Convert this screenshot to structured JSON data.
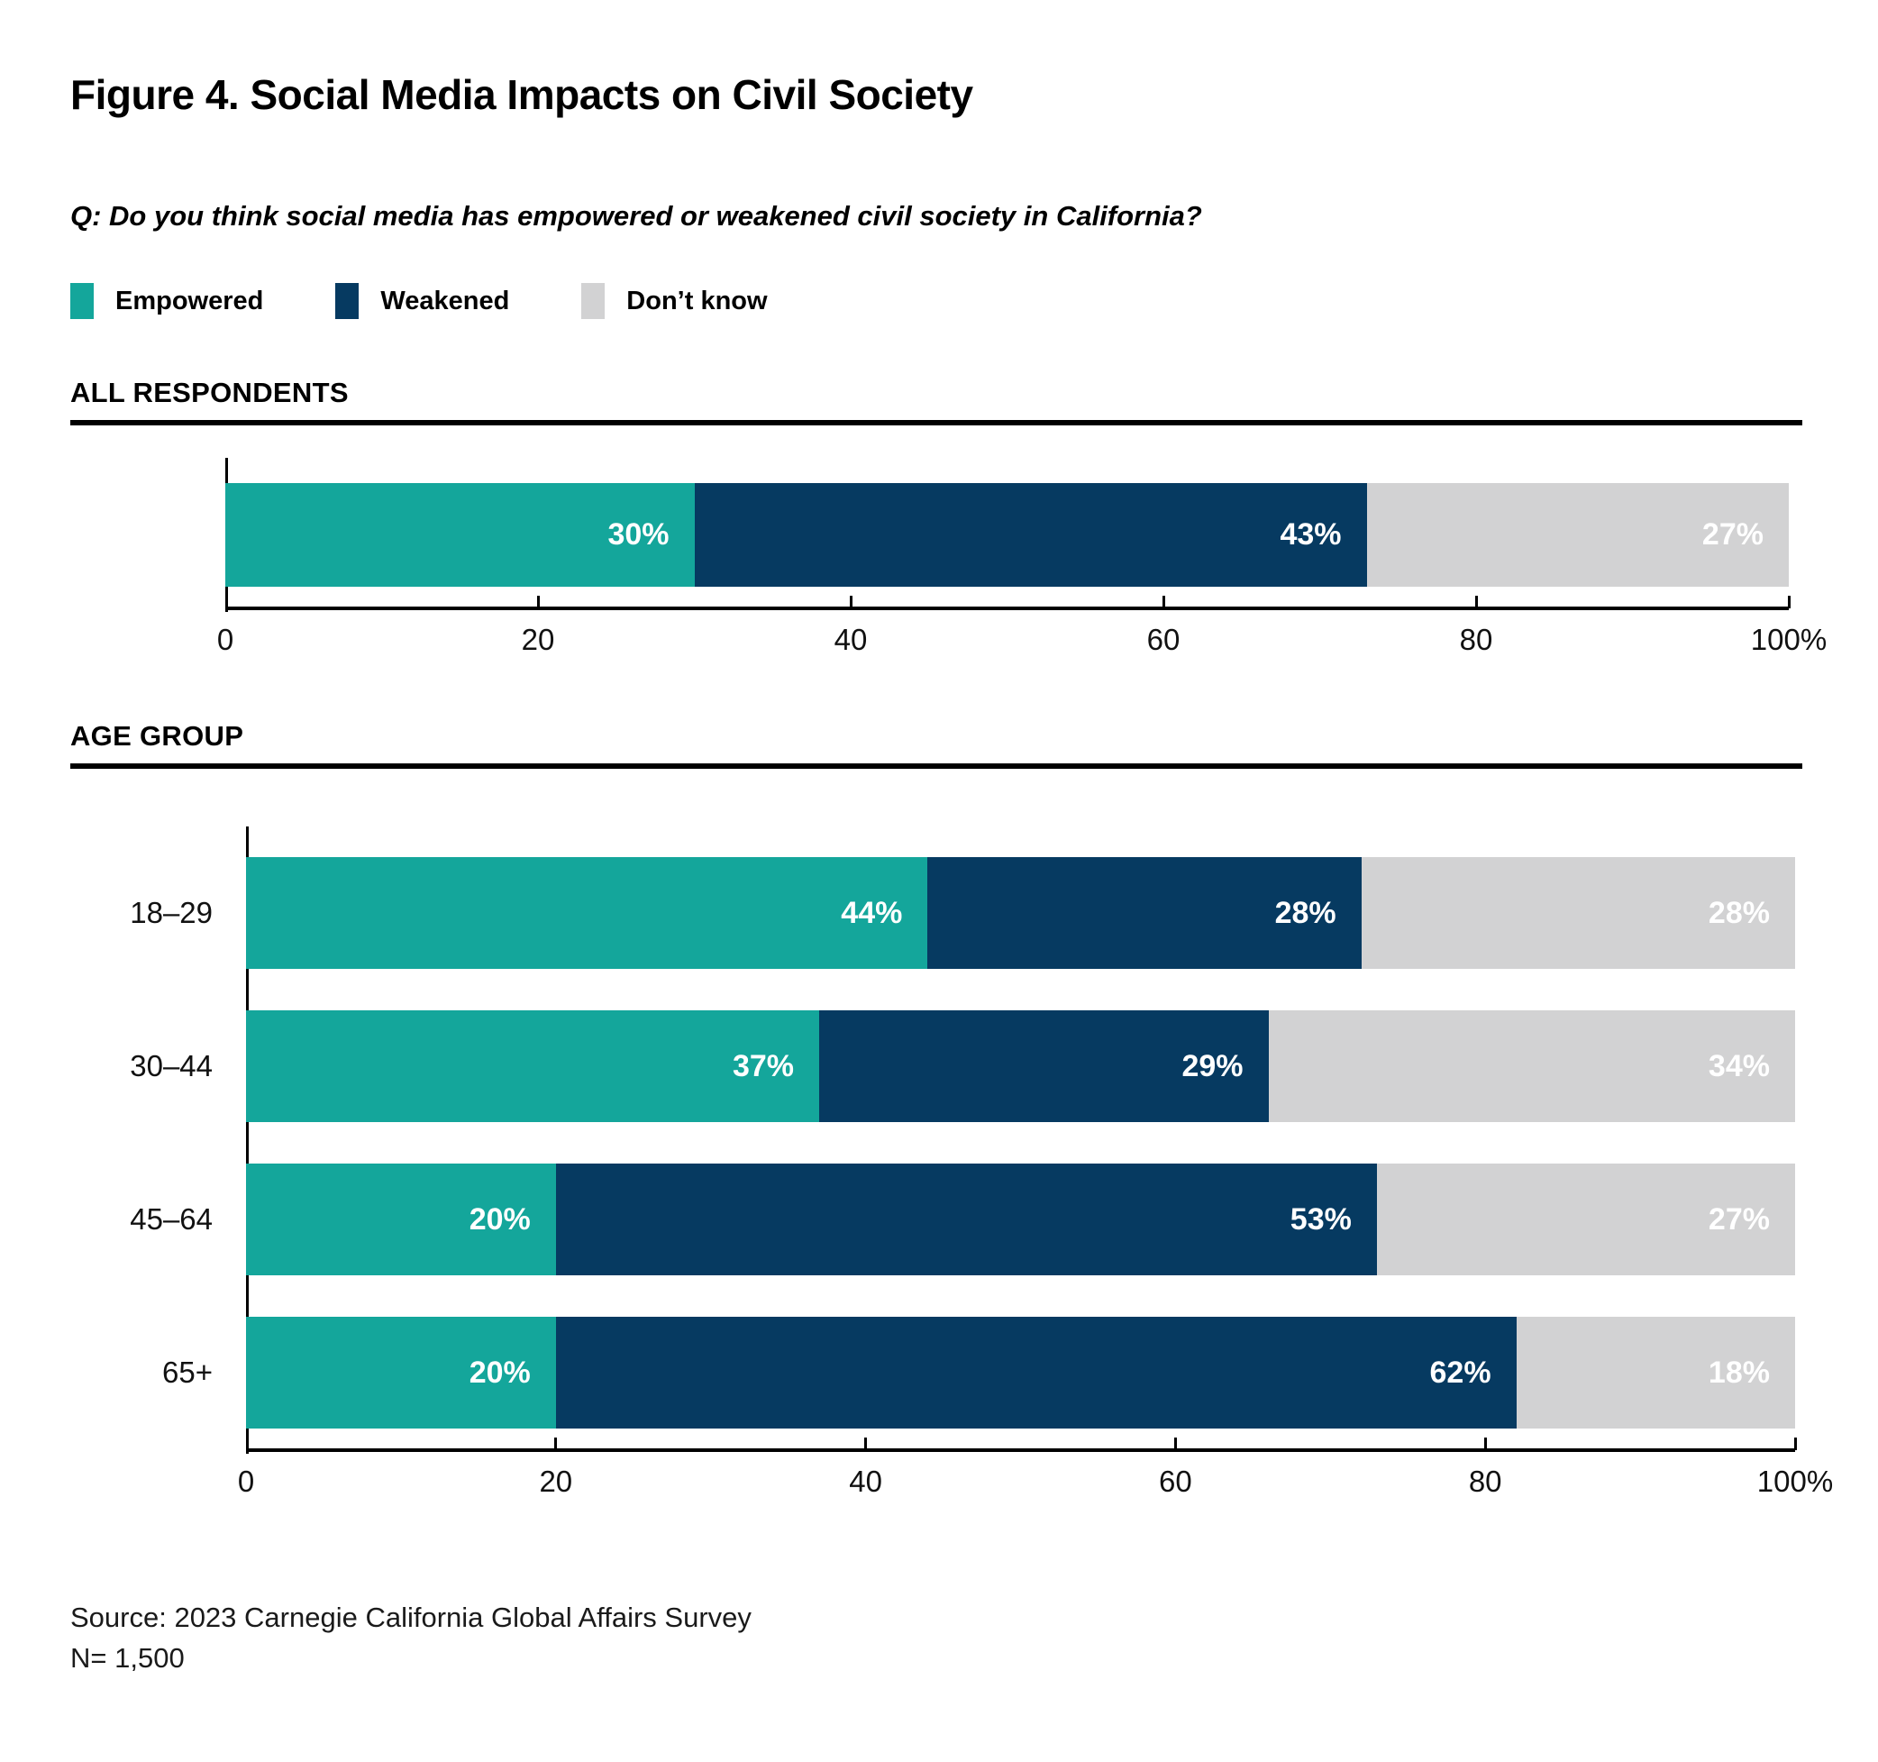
{
  "title": "Figure 4. Social Media Impacts on Civil Society",
  "question": "Q: Do you think social media has empowered or weakened civil society in California?",
  "legend": {
    "items": [
      {
        "label": "Empowered",
        "color": "#14A69B"
      },
      {
        "label": "Weakened",
        "color": "#063A61"
      },
      {
        "label": "Don’t know",
        "color": "#D2D2D3"
      }
    ]
  },
  "sections": {
    "all_respondents": {
      "heading": "ALL RESPONDENTS"
    },
    "age_group": {
      "heading": "AGE GROUP"
    }
  },
  "chart_data": [
    {
      "type": "bar",
      "subtype": "stacked-horizontal",
      "title": "ALL RESPONDENTS",
      "categories": [
        ""
      ],
      "series": [
        {
          "name": "Empowered",
          "color": "#14A69B",
          "values": [
            30
          ]
        },
        {
          "name": "Weakened",
          "color": "#063A61",
          "values": [
            43
          ]
        },
        {
          "name": "Don’t know",
          "color": "#D2D2D3",
          "values": [
            27
          ]
        }
      ],
      "value_label_format": "{v}%",
      "xlim": [
        0,
        100
      ],
      "x_ticks": [
        {
          "value": 0,
          "label": "0"
        },
        {
          "value": 20,
          "label": "20"
        },
        {
          "value": 40,
          "label": "40"
        },
        {
          "value": 60,
          "label": "60"
        },
        {
          "value": 80,
          "label": "80"
        },
        {
          "value": 100,
          "label": "100%"
        }
      ],
      "grid": false,
      "legend_position": "top"
    },
    {
      "type": "bar",
      "subtype": "stacked-horizontal",
      "title": "AGE GROUP",
      "categories": [
        "18–29",
        "30–44",
        "45–64",
        "65+"
      ],
      "series": [
        {
          "name": "Empowered",
          "color": "#14A69B",
          "values": [
            44,
            37,
            20,
            20
          ]
        },
        {
          "name": "Weakened",
          "color": "#063A61",
          "values": [
            28,
            29,
            53,
            62
          ]
        },
        {
          "name": "Don’t know",
          "color": "#D2D2D3",
          "values": [
            28,
            34,
            27,
            18
          ]
        }
      ],
      "value_label_format": "{v}%",
      "xlim": [
        0,
        100
      ],
      "x_ticks": [
        {
          "value": 0,
          "label": "0"
        },
        {
          "value": 20,
          "label": "20"
        },
        {
          "value": 40,
          "label": "40"
        },
        {
          "value": 60,
          "label": "60"
        },
        {
          "value": 80,
          "label": "80"
        },
        {
          "value": 100,
          "label": "100%"
        }
      ],
      "grid": false,
      "legend_position": "top"
    }
  ],
  "source": {
    "line1": "Source: 2023 Carnegie California Global Affairs Survey",
    "line2": "N= 1,500"
  }
}
